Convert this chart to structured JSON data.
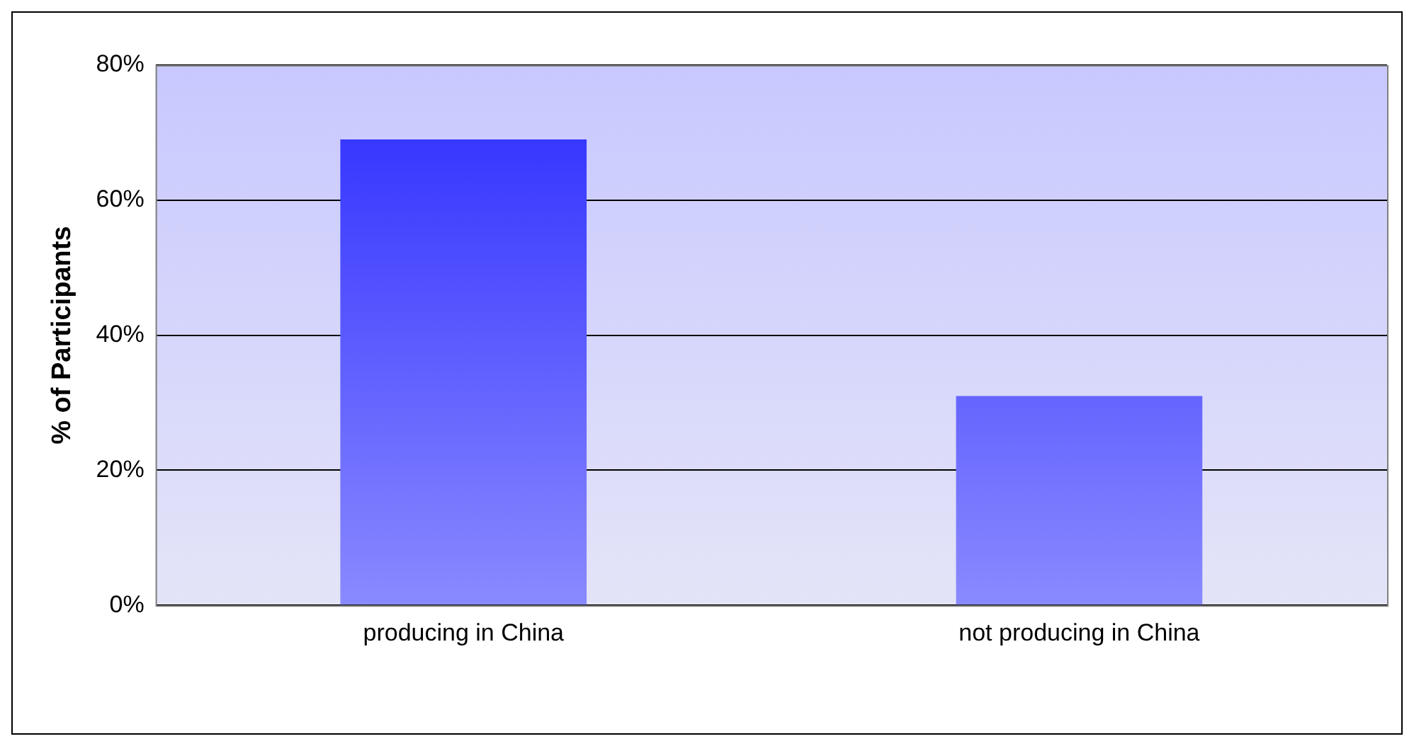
{
  "chart_data": {
    "type": "bar",
    "ylabel": "% of Participants",
    "categories": [
      "producing in China",
      "not producing in China"
    ],
    "values": [
      69,
      31
    ],
    "color": "#2a2aff",
    "ylim": [
      0,
      80
    ],
    "yticks": [
      {
        "value": 0,
        "label": "0%"
      },
      {
        "value": 20,
        "label": "20%"
      },
      {
        "value": 40,
        "label": "40%"
      },
      {
        "value": 60,
        "label": "60%"
      },
      {
        "value": 80,
        "label": "80%"
      }
    ],
    "grid": "y",
    "legend": false
  }
}
